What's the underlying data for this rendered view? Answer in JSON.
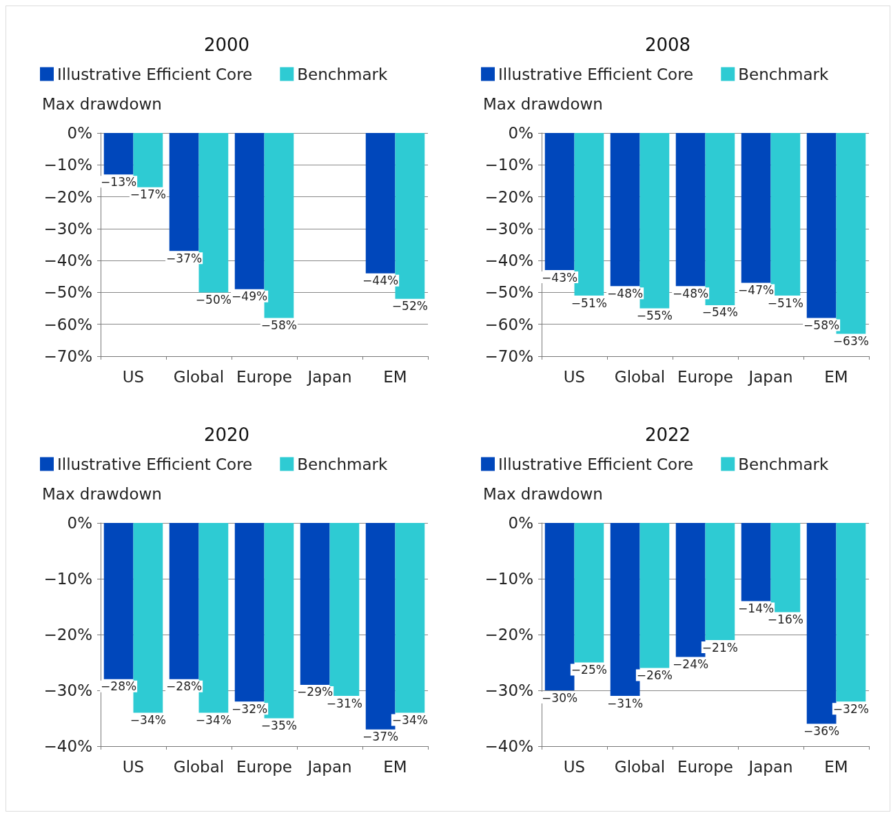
{
  "chart_data": [
    {
      "type": "bar",
      "title": "2000",
      "ylabel": "Max drawdown",
      "categories": [
        "US",
        "Global",
        "Europe",
        "Japan",
        "EM"
      ],
      "legend": "top left",
      "grid": "y",
      "ylim": [
        -70,
        0
      ],
      "yticks": [
        {
          "value": -70,
          "label": "−70%"
        },
        {
          "value": -60,
          "label": "−60%"
        },
        {
          "value": -50,
          "label": "−50%"
        },
        {
          "value": -40,
          "label": "−40%"
        },
        {
          "value": -30,
          "label": "−30%"
        },
        {
          "value": -20,
          "label": "−20%"
        },
        {
          "value": -10,
          "label": "−10%"
        },
        {
          "value": 0,
          "label": "0%"
        }
      ],
      "series": [
        {
          "name": "Illustrative Efficient Core",
          "color": "#0047bb",
          "values": [
            -13,
            -37,
            -49,
            null,
            -44
          ],
          "value_labels": [
            "−13%",
            "−37%",
            "−49%",
            null,
            "−44%"
          ]
        },
        {
          "name": "Benchmark",
          "color": "#2ecbd3",
          "values": [
            -17,
            -50,
            -58,
            null,
            -52
          ],
          "value_labels": [
            "−17%",
            "−50%",
            "−58%",
            null,
            "−52%"
          ]
        }
      ]
    },
    {
      "type": "bar",
      "title": "2008",
      "ylabel": "Max drawdown",
      "categories": [
        "US",
        "Global",
        "Europe",
        "Japan",
        "EM"
      ],
      "legend": "top left",
      "grid": "y",
      "ylim": [
        -70,
        0
      ],
      "yticks": [
        {
          "value": -70,
          "label": "−70%"
        },
        {
          "value": -60,
          "label": "−60%"
        },
        {
          "value": -50,
          "label": "−50%"
        },
        {
          "value": -40,
          "label": "−40%"
        },
        {
          "value": -30,
          "label": "−30%"
        },
        {
          "value": -20,
          "label": "−20%"
        },
        {
          "value": -10,
          "label": "−10%"
        },
        {
          "value": 0,
          "label": "0%"
        }
      ],
      "series": [
        {
          "name": "Illustrative Efficient Core",
          "color": "#0047bb",
          "values": [
            -43,
            -48,
            -48,
            -47,
            -58
          ],
          "value_labels": [
            "−43%",
            "−48%",
            "−48%",
            "−47%",
            "−58%"
          ]
        },
        {
          "name": "Benchmark",
          "color": "#2ecbd3",
          "values": [
            -51,
            -55,
            -54,
            -51,
            -63
          ],
          "value_labels": [
            "−51%",
            "−55%",
            "−54%",
            "−51%",
            "−63%"
          ]
        }
      ]
    },
    {
      "type": "bar",
      "title": "2020",
      "ylabel": "Max drawdown",
      "categories": [
        "US",
        "Global",
        "Europe",
        "Japan",
        "EM"
      ],
      "legend": "top left",
      "grid": "y",
      "ylim": [
        -40,
        0
      ],
      "yticks": [
        {
          "value": -40,
          "label": "−40%"
        },
        {
          "value": -30,
          "label": "−30%"
        },
        {
          "value": -20,
          "label": "−20%"
        },
        {
          "value": -10,
          "label": "−10%"
        },
        {
          "value": 0,
          "label": "0%"
        }
      ],
      "series": [
        {
          "name": "Illustrative Efficient Core",
          "color": "#0047bb",
          "values": [
            -28,
            -28,
            -32,
            -29,
            -37
          ],
          "value_labels": [
            "−28%",
            "−28%",
            "−32%",
            "−29%",
            "−37%"
          ]
        },
        {
          "name": "Benchmark",
          "color": "#2ecbd3",
          "values": [
            -34,
            -34,
            -35,
            -31,
            -34
          ],
          "value_labels": [
            "−34%",
            "−34%",
            "−35%",
            "−31%",
            "−34%"
          ]
        }
      ]
    },
    {
      "type": "bar",
      "title": "2022",
      "ylabel": "Max drawdown",
      "categories": [
        "US",
        "Global",
        "Europe",
        "Japan",
        "EM"
      ],
      "legend": "top left",
      "grid": "y",
      "ylim": [
        -40,
        0
      ],
      "yticks": [
        {
          "value": -40,
          "label": "−40%"
        },
        {
          "value": -30,
          "label": "−30%"
        },
        {
          "value": -20,
          "label": "−20%"
        },
        {
          "value": -10,
          "label": "−10%"
        },
        {
          "value": 0,
          "label": "0%"
        }
      ],
      "series": [
        {
          "name": "Illustrative Efficient Core",
          "color": "#0047bb",
          "values": [
            -30,
            -31,
            -24,
            -14,
            -36
          ],
          "value_labels": [
            "−30%",
            "−31%",
            "−24%",
            "−14%",
            "−36%"
          ]
        },
        {
          "name": "Benchmark",
          "color": "#2ecbd3",
          "values": [
            -25,
            -26,
            -21,
            -16,
            -32
          ],
          "value_labels": [
            "−25%",
            "−26%",
            "−21%",
            "−16%",
            "−32%"
          ]
        }
      ]
    }
  ]
}
